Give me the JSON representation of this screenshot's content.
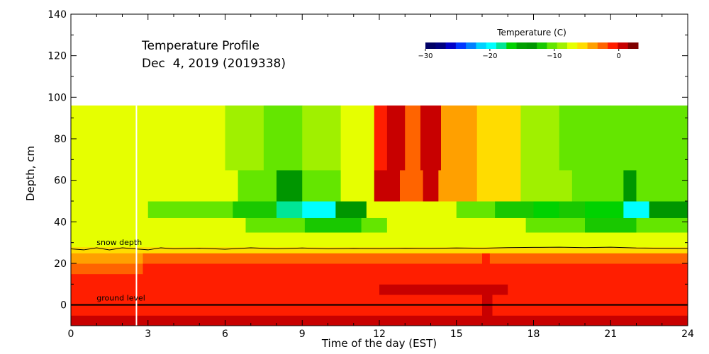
{
  "chart_data": {
    "type": "heatmap",
    "title": "Temperature Profile",
    "subtitle": "Dec  4, 2019 (2019338)",
    "xlabel": "Time of the day (EST)",
    "ylabel": "Depth, cm",
    "xlim": [
      0,
      24
    ],
    "ylim": [
      -10,
      140
    ],
    "x_ticks": [
      0,
      3,
      6,
      9,
      12,
      15,
      18,
      21,
      24
    ],
    "y_ticks": [
      0,
      20,
      40,
      60,
      80,
      100,
      120,
      140
    ],
    "colorbar": {
      "title": "Temperature (C)",
      "range": [
        -30,
        3
      ],
      "ticks": [
        -30,
        -20,
        -10,
        0
      ],
      "colors": [
        "#000066",
        "#00007f",
        "#0000c8",
        "#0037ff",
        "#0080ff",
        "#00d2ff",
        "#00ffff",
        "#00e696",
        "#00d200",
        "#00a000",
        "#009600",
        "#19c800",
        "#64e600",
        "#a0f000",
        "#e6ff00",
        "#ffdc00",
        "#ffa000",
        "#ff6400",
        "#ff1e00",
        "#c80000",
        "#800000"
      ]
    },
    "annotations": {
      "snow_depth_label": "snow depth",
      "ground_level_label": "ground level"
    },
    "marker_time": 2.55,
    "ground_level": 0,
    "layers": [
      {
        "depth_range": [
          -10,
          -5
        ],
        "segments": [
          {
            "t": [
              0,
              24
            ],
            "temp": 0
          }
        ]
      },
      {
        "depth_range": [
          -5,
          0
        ],
        "segments": [
          {
            "t": [
              0,
              16
            ],
            "temp": -1
          },
          {
            "t": [
              16,
              16.4
            ],
            "temp": 0
          },
          {
            "t": [
              16.4,
              24
            ],
            "temp": -1
          }
        ]
      },
      {
        "depth_range": [
          0,
          5
        ],
        "segments": [
          {
            "t": [
              0,
              16
            ],
            "temp": -1
          },
          {
            "t": [
              16,
              16.4
            ],
            "temp": 0
          },
          {
            "t": [
              16.4,
              24
            ],
            "temp": -1
          }
        ]
      },
      {
        "depth_range": [
          5,
          10
        ],
        "segments": [
          {
            "t": [
              0,
              12
            ],
            "temp": -1
          },
          {
            "t": [
              12,
              17
            ],
            "temp": 1
          },
          {
            "t": [
              17,
              24
            ],
            "temp": -1
          }
        ]
      },
      {
        "depth_range": [
          10,
          15
        ],
        "segments": [
          {
            "t": [
              0,
              24
            ],
            "temp": -1
          }
        ]
      },
      {
        "depth_range": [
          15,
          20
        ],
        "segments": [
          {
            "t": [
              0,
              2.8
            ],
            "temp": -2
          },
          {
            "t": [
              2.8,
              24
            ],
            "temp": -1.5
          }
        ]
      },
      {
        "depth_range": [
          20,
          25
        ],
        "segments": [
          {
            "t": [
              0,
              2.8
            ],
            "temp": -4
          },
          {
            "t": [
              2.8,
              16
            ],
            "temp": -2.5
          },
          {
            "t": [
              16,
              16.3
            ],
            "temp": -1
          },
          {
            "t": [
              16.3,
              24
            ],
            "temp": -2.5
          }
        ]
      },
      {
        "depth_range": [
          25,
          28
        ],
        "segments": [
          {
            "t": [
              0,
              24
            ],
            "temp": -5
          }
        ]
      },
      {
        "depth_range": [
          28,
          35
        ],
        "segments": [
          {
            "t": [
              0,
              24
            ],
            "temp": -7
          }
        ]
      },
      {
        "depth_range": [
          35,
          42
        ],
        "segments": [
          {
            "t": [
              0,
              6.8
            ],
            "temp": -7
          },
          {
            "t": [
              6.8,
              9.1
            ],
            "temp": -10
          },
          {
            "t": [
              9.1,
              11.3
            ],
            "temp": -12
          },
          {
            "t": [
              11.3,
              12.3
            ],
            "temp": -10
          },
          {
            "t": [
              12.3,
              17.7
            ],
            "temp": -7
          },
          {
            "t": [
              17.7,
              20
            ],
            "temp": -10
          },
          {
            "t": [
              20,
              22
            ],
            "temp": -12
          },
          {
            "t": [
              22,
              24
            ],
            "temp": -11
          }
        ]
      },
      {
        "depth_range": [
          42,
          50
        ],
        "segments": [
          {
            "t": [
              0,
              3
            ],
            "temp": -7
          },
          {
            "t": [
              3,
              6.3
            ],
            "temp": -10
          },
          {
            "t": [
              6.3,
              8
            ],
            "temp": -12
          },
          {
            "t": [
              8,
              9
            ],
            "temp": -18
          },
          {
            "t": [
              9,
              10.3
            ],
            "temp": -20
          },
          {
            "t": [
              10.3,
              11.5
            ],
            "temp": -13
          },
          {
            "t": [
              11.5,
              13
            ],
            "temp": -7
          },
          {
            "t": [
              13,
              15
            ],
            "temp": -8
          },
          {
            "t": [
              15,
              16.5
            ],
            "temp": -10
          },
          {
            "t": [
              16.5,
              18
            ],
            "temp": -12
          },
          {
            "t": [
              18,
              19
            ],
            "temp": -16
          },
          {
            "t": [
              19,
              20
            ],
            "temp": -12
          },
          {
            "t": [
              20,
              21.5
            ],
            "temp": -16
          },
          {
            "t": [
              21.5,
              22.5
            ],
            "temp": -20
          },
          {
            "t": [
              22.5,
              24
            ],
            "temp": -13
          }
        ]
      },
      {
        "depth_range": [
          50,
          65
        ],
        "segments": [
          {
            "t": [
              0,
              3.5
            ],
            "temp": -7
          },
          {
            "t": [
              3.5,
              6.5
            ],
            "temp": -8
          },
          {
            "t": [
              6.5,
              8
            ],
            "temp": -11
          },
          {
            "t": [
              8,
              9
            ],
            "temp": -13
          },
          {
            "t": [
              9,
              10.5
            ],
            "temp": -10
          },
          {
            "t": [
              10.5,
              11.8
            ],
            "temp": -8
          },
          {
            "t": [
              11.8,
              12.8
            ],
            "temp": 0
          },
          {
            "t": [
              12.8,
              13.7
            ],
            "temp": -3
          },
          {
            "t": [
              13.7,
              14.3
            ],
            "temp": 1
          },
          {
            "t": [
              14.3,
              15.8
            ],
            "temp": -4
          },
          {
            "t": [
              15.8,
              17.5
            ],
            "temp": -6
          },
          {
            "t": [
              17.5,
              19.5
            ],
            "temp": -9
          },
          {
            "t": [
              19.5,
              21.5
            ],
            "temp": -11
          },
          {
            "t": [
              21.5,
              22
            ],
            "temp": -14
          },
          {
            "t": [
              22,
              24
            ],
            "temp": -11
          }
        ]
      },
      {
        "depth_range": [
          65,
          96
        ],
        "segments": [
          {
            "t": [
              0,
              3.8
            ],
            "temp": -7
          },
          {
            "t": [
              3.8,
              6
            ],
            "temp": -8
          },
          {
            "t": [
              6,
              7.5
            ],
            "temp": -9
          },
          {
            "t": [
              7.5,
              9
            ],
            "temp": -11
          },
          {
            "t": [
              9,
              10.5
            ],
            "temp": -9
          },
          {
            "t": [
              10.5,
              11.8
            ],
            "temp": -7
          },
          {
            "t": [
              11.8,
              12.3
            ],
            "temp": -1
          },
          {
            "t": [
              12.3,
              13
            ],
            "temp": 0
          },
          {
            "t": [
              13,
              13.6
            ],
            "temp": -3
          },
          {
            "t": [
              13.6,
              14.4
            ],
            "temp": 0
          },
          {
            "t": [
              14.4,
              15.8
            ],
            "temp": -4
          },
          {
            "t": [
              15.8,
              17.5
            ],
            "temp": -5
          },
          {
            "t": [
              17.5,
              19
            ],
            "temp": -9
          },
          {
            "t": [
              19,
              21
            ],
            "temp": -10
          },
          {
            "t": [
              21,
              22
            ],
            "temp": -11
          },
          {
            "t": [
              22,
              24
            ],
            "temp": -10
          }
        ]
      }
    ],
    "snow_depth": {
      "t": [
        0,
        0.5,
        1,
        1.5,
        2,
        2.5,
        3,
        3.5,
        4,
        5,
        6,
        7,
        8,
        9,
        10,
        11,
        12,
        13,
        14,
        15,
        16,
        17,
        18,
        19,
        20,
        21,
        22,
        23,
        24
      ],
      "depth": [
        27,
        26.5,
        27.5,
        26.5,
        27.5,
        27,
        26.5,
        27.5,
        27,
        27.3,
        26.8,
        27.5,
        27,
        27.4,
        27,
        27.2,
        27.1,
        27.3,
        27.2,
        27.4,
        27.3,
        27.6,
        27.7,
        27.8,
        27.6,
        27.8,
        27.4,
        27.3,
        27.2
      ]
    }
  }
}
